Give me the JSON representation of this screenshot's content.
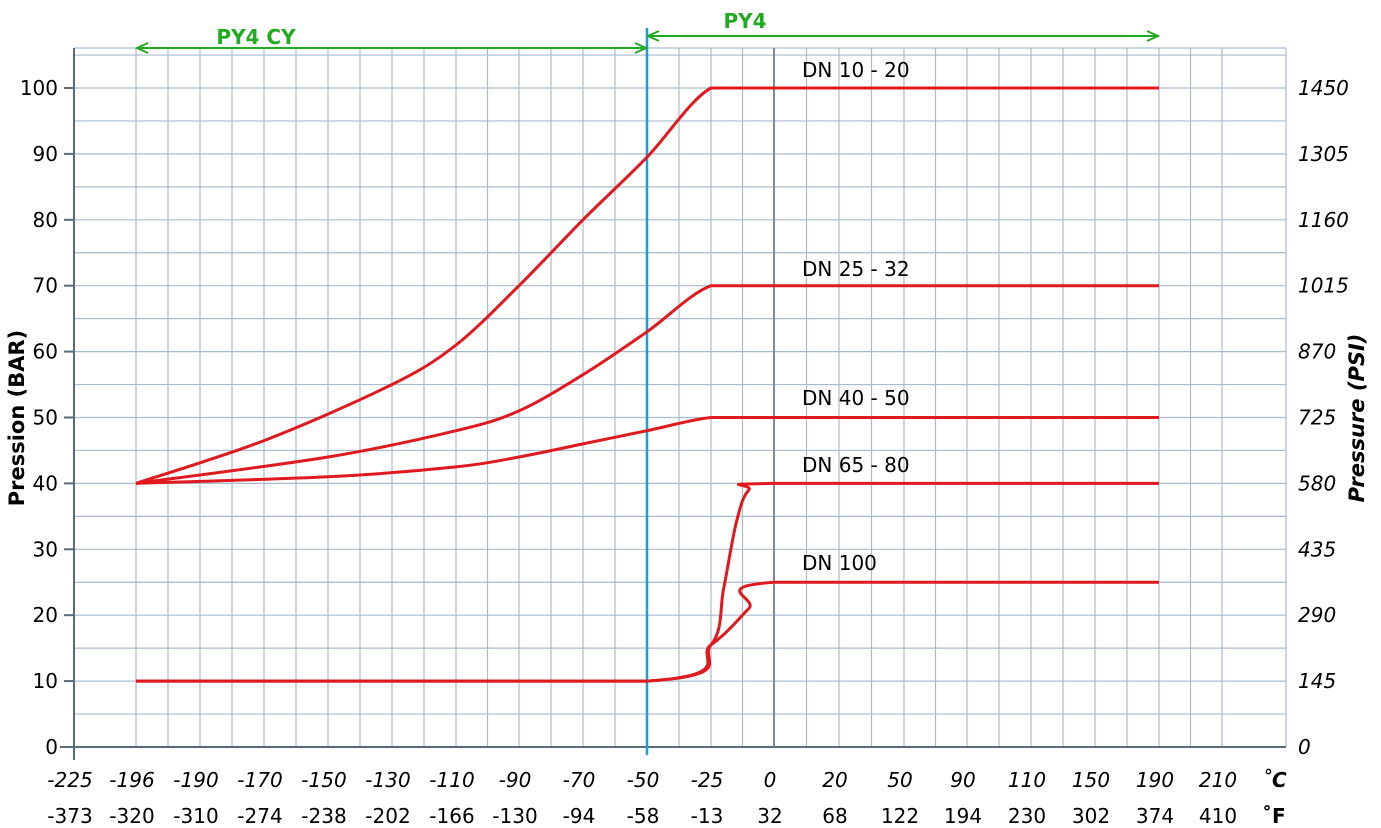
{
  "chart_data": {
    "type": "line",
    "ylabel_left": "Pression (BAR)",
    "ylabel_right": "Pressure (PSI)",
    "ylim": [
      0,
      100
    ],
    "y_ticks_bar": [
      "0",
      "10",
      "20",
      "30",
      "40",
      "50",
      "60",
      "70",
      "80",
      "90",
      "100"
    ],
    "y_ticks_psi": [
      "0",
      "145",
      "290",
      "435",
      "580",
      "725",
      "870",
      "1015",
      "1160",
      "1305",
      "1450"
    ],
    "x_unit_c": "˚C",
    "x_unit_f": "˚F",
    "x_ticks_c": [
      "-225",
      "-196",
      "-190",
      "-170",
      "-150",
      "-130",
      "-110",
      "-90",
      "-70",
      "-50",
      "-25",
      "0",
      "20",
      "50",
      "90",
      "110",
      "150",
      "190",
      "210"
    ],
    "x_ticks_f": [
      "-373",
      "-320",
      "-310",
      "-274",
      "-238",
      "-202",
      "-166",
      "-130",
      "-94",
      "-58",
      "-13",
      "32",
      "68",
      "122",
      "194",
      "230",
      "302",
      "374",
      "410"
    ],
    "grid": true,
    "ranges": [
      {
        "label": "PY4 CY",
        "from_c": "-196",
        "to_c": "-50"
      },
      {
        "label": "PY4",
        "from_c": "-50",
        "to_c": "190"
      }
    ],
    "divider_c": "-50",
    "series": [
      {
        "name": "DN 10 - 20",
        "points_c": [
          [
            "-196",
            40
          ],
          [
            "-170",
            46.5
          ],
          [
            "-130",
            55
          ],
          [
            "-110",
            61
          ],
          [
            "-90",
            70
          ],
          [
            "-70",
            80
          ],
          [
            "-50",
            89.5
          ],
          [
            "-25",
            100
          ],
          [
            "0",
            100
          ],
          [
            "190",
            100
          ]
        ]
      },
      {
        "name": "DN 25 - 32",
        "points_c": [
          [
            "-196",
            40
          ],
          [
            "-150",
            44
          ],
          [
            "-110",
            48
          ],
          [
            "-90",
            51
          ],
          [
            "-70",
            56.5
          ],
          [
            "-50",
            63
          ],
          [
            "-25",
            70
          ],
          [
            "0",
            70
          ],
          [
            "190",
            70
          ]
        ]
      },
      {
        "name": "DN 40 - 50",
        "points_c": [
          [
            "-196",
            40
          ],
          [
            "-150",
            41
          ],
          [
            "-110",
            42.5
          ],
          [
            "-90",
            44
          ],
          [
            "-70",
            46
          ],
          [
            "-50",
            48
          ],
          [
            "-25",
            50
          ],
          [
            "0",
            50
          ],
          [
            "190",
            50
          ]
        ]
      },
      {
        "name": "DN 65 - 80",
        "points_c": [
          [
            "-196",
            10
          ],
          [
            "-50",
            10
          ],
          [
            "-25",
            15.5
          ],
          [
            "-20",
            24
          ],
          [
            "-15",
            34
          ],
          [
            "-10",
            39
          ],
          [
            "0",
            40
          ],
          [
            "190",
            40
          ]
        ]
      },
      {
        "name": "DN 100",
        "points_c": [
          [
            "-196",
            10
          ],
          [
            "-50",
            10
          ],
          [
            "-25",
            15.5
          ],
          [
            "-10",
            21
          ],
          [
            "0",
            25
          ],
          [
            "190",
            25
          ]
        ]
      }
    ],
    "colors": {
      "series": "#e0191f",
      "divider": "#1e9be0",
      "range": "#22aa22",
      "grid": "#a9bccf",
      "axis": "#5a6b7a"
    }
  }
}
